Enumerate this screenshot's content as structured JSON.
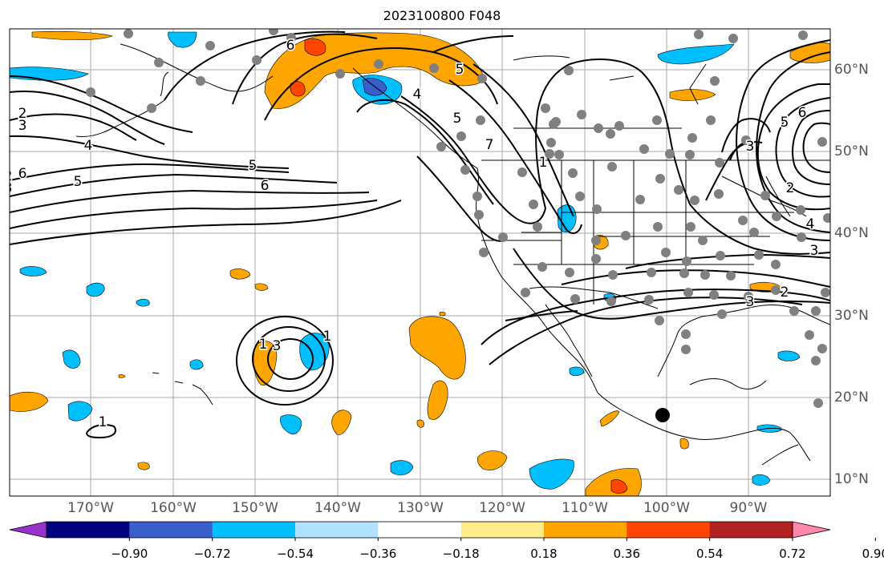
{
  "title": "2023100800 F048",
  "lon_labels": [
    "170°W",
    "160°W",
    "150°W",
    "140°W",
    "130°W",
    "120°W",
    "110°W",
    "100°W",
    "90°W"
  ],
  "lat_labels": [
    "60°N",
    "50°N",
    "40°N",
    "30°N",
    "20°N",
    "10°N"
  ],
  "colorbar": {
    "ticks": [
      "−0.90",
      "−0.72",
      "−0.54",
      "−0.36",
      "−0.18",
      "0.18",
      "0.36",
      "0.54",
      "0.72",
      "0.90"
    ],
    "colors": [
      "#9932CC",
      "#000080",
      "#3A5FCD",
      "#00BFFF",
      "#B0E2FF",
      "#FFFFFF",
      "#FFEC8B",
      "#FFA500",
      "#FF4500",
      "#B22222",
      "#FF88AA"
    ]
  },
  "contour_labels": [
    "2",
    "3",
    "4",
    "5",
    "6",
    "5",
    "6",
    "3",
    "7",
    "5",
    "1",
    "2",
    "3",
    "4",
    "6",
    "5",
    "2",
    "3",
    "1",
    "1",
    "3",
    "1",
    "4",
    "5",
    "6",
    "2",
    "3"
  ],
  "colors": {
    "land_outline": "#000000",
    "grid": "#aaaaaa",
    "orange": "#FFA500",
    "red": "#FF4500",
    "light_orange": "#FFEC8B",
    "cyan": "#00BFFF",
    "blue": "#3A5FCD",
    "station_marker": "#808080",
    "highlight_marker": "#000000"
  }
}
